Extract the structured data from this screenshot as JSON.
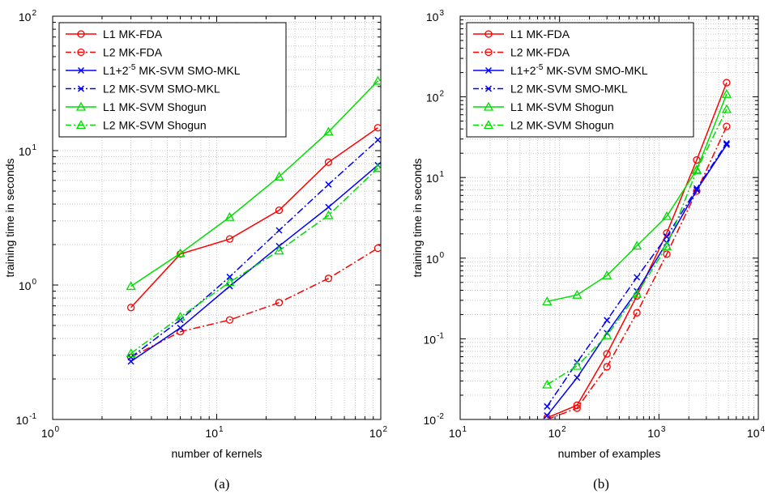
{
  "captions": [
    "(a)",
    "(b)"
  ],
  "series_styles": [
    {
      "color": "#ff0000",
      "dash": "solid",
      "marker": "circle"
    },
    {
      "color": "#ff0000",
      "dash": "dashdot",
      "marker": "circle"
    },
    {
      "color": "#0000ff",
      "dash": "solid",
      "marker": "x"
    },
    {
      "color": "#0000ff",
      "dash": "dashdot",
      "marker": "x"
    },
    {
      "color": "#00dd00",
      "dash": "solid",
      "marker": "triangle"
    },
    {
      "color": "#00dd00",
      "dash": "dashdot",
      "marker": "triangle"
    }
  ],
  "chart_data": [
    {
      "type": "line",
      "xscale": "log",
      "yscale": "log",
      "grid": true,
      "legend": "top-left",
      "title": "",
      "xlabel": "number of kernels",
      "ylabel": "training time in seconds",
      "xlim": [
        1,
        100
      ],
      "ylim": [
        0.1,
        100
      ],
      "x_ticks": [
        {
          "value": 1,
          "base": "10",
          "exp": "0"
        },
        {
          "value": 10,
          "base": "10",
          "exp": "1"
        },
        {
          "value": 100,
          "base": "10",
          "exp": "2"
        }
      ],
      "y_ticks": [
        {
          "value": 0.1,
          "base": "10",
          "exp": "-1"
        },
        {
          "value": 1,
          "base": "10",
          "exp": "0"
        },
        {
          "value": 10,
          "base": "10",
          "exp": "1"
        },
        {
          "value": 100,
          "base": "10",
          "exp": "2"
        }
      ],
      "x": [
        3,
        6,
        12,
        24,
        48,
        96
      ],
      "series": [
        {
          "name": "L1 MK-FDA",
          "values": [
            0.68,
            1.7,
            2.2,
            3.6,
            8.2,
            14.8
          ]
        },
        {
          "name": "L2 MK-FDA",
          "values": [
            0.29,
            0.45,
            0.55,
            0.74,
            1.12,
            1.88
          ]
        },
        {
          "name": "L1+2^-5 MK-SVM SMO-MKL",
          "name_parts": {
            "pre": "L1+2",
            "sup": "-5",
            "post": " MK-SVM SMO-MKL"
          },
          "values": [
            0.27,
            0.48,
            0.98,
            1.95,
            3.8,
            7.8
          ]
        },
        {
          "name": "L2 MK-SVM SMO-MKL",
          "values": [
            0.29,
            0.55,
            1.15,
            2.55,
            5.6,
            12.0
          ]
        },
        {
          "name": "L1 MK-SVM Shogun",
          "values": [
            0.98,
            1.72,
            3.2,
            6.4,
            13.8,
            33.0
          ]
        },
        {
          "name": "L2 MK-SVM Shogun",
          "values": [
            0.31,
            0.58,
            1.05,
            1.8,
            3.3,
            7.4
          ]
        }
      ]
    },
    {
      "type": "line",
      "xscale": "log",
      "yscale": "log",
      "grid": true,
      "legend": "top-left",
      "title": "",
      "xlabel": "number of examples",
      "ylabel": "training time in seconds",
      "xlim": [
        10,
        10000
      ],
      "ylim": [
        0.01,
        1000
      ],
      "x_ticks": [
        {
          "value": 10,
          "base": "10",
          "exp": "1"
        },
        {
          "value": 100,
          "base": "10",
          "exp": "2"
        },
        {
          "value": 1000,
          "base": "10",
          "exp": "3"
        },
        {
          "value": 10000,
          "base": "10",
          "exp": "4"
        }
      ],
      "y_ticks": [
        {
          "value": 0.01,
          "base": "10",
          "exp": "-2"
        },
        {
          "value": 0.1,
          "base": "10",
          "exp": "-1"
        },
        {
          "value": 1,
          "base": "10",
          "exp": "0"
        },
        {
          "value": 10,
          "base": "10",
          "exp": "1"
        },
        {
          "value": 100,
          "base": "10",
          "exp": "2"
        },
        {
          "value": 1000,
          "base": "10",
          "exp": "3"
        }
      ],
      "x": [
        75,
        150,
        300,
        600,
        1200,
        2400,
        4800
      ],
      "series": [
        {
          "name": "L1 MK-FDA",
          "values": [
            0.0105,
            0.015,
            0.065,
            0.34,
            2.05,
            16.5,
            150
          ]
        },
        {
          "name": "L2 MK-FDA",
          "values": [
            0.01,
            0.0138,
            0.045,
            0.21,
            1.12,
            6.8,
            43
          ]
        },
        {
          "name": "L1+2^-5 MK-SVM SMO-MKL",
          "name_parts": {
            "pre": "L1+2",
            "sup": "-5",
            "post": " MK-SVM SMO-MKL"
          },
          "values": [
            0.0112,
            0.033,
            0.118,
            0.39,
            1.55,
            7.0,
            25.5
          ]
        },
        {
          "name": "L2 MK-SVM SMO-MKL",
          "values": [
            0.0145,
            0.051,
            0.17,
            0.58,
            1.85,
            7.3,
            26.5
          ]
        },
        {
          "name": "L1 MK-SVM Shogun",
          "values": [
            0.29,
            0.35,
            0.61,
            1.42,
            3.3,
            12.5,
            108
          ]
        },
        {
          "name": "L2 MK-SVM Shogun",
          "values": [
            0.027,
            0.046,
            0.11,
            0.36,
            1.4,
            12.3,
            70
          ]
        }
      ]
    }
  ]
}
